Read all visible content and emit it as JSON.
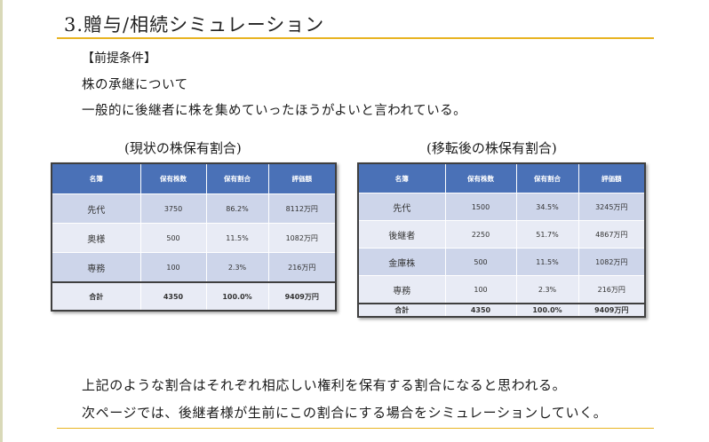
{
  "slide": {
    "title": "3.贈与/相続シミュレーション",
    "premise_label": "【前提条件】",
    "intro_lines": [
      "株の承継について",
      "一般的に後継者に株を集めていったほうがよいと言われている。"
    ]
  },
  "tables": [
    {
      "caption": "(現状の株保有割合)",
      "headers": [
        "名簿",
        "保有株数",
        "保有割合",
        "評価額"
      ],
      "rows": [
        [
          "先代",
          "3750",
          "86.2%",
          "8112万円"
        ],
        [
          "奥様",
          "500",
          "11.5%",
          "1082万円"
        ],
        [
          "専務",
          "100",
          "2.3%",
          "216万円"
        ]
      ],
      "total": [
        "合計",
        "4350",
        "100.0%",
        "9409万円"
      ]
    },
    {
      "caption": "(移転後の株保有割合)",
      "headers": [
        "名簿",
        "保有株数",
        "保有割合",
        "評価額"
      ],
      "rows": [
        [
          "先代",
          "1500",
          "34.5%",
          "3245万円"
        ],
        [
          "後継者",
          "2250",
          "51.7%",
          "4867万円"
        ],
        [
          "金庫株",
          "500",
          "11.5%",
          "1082万円"
        ],
        [
          "専務",
          "100",
          "2.3%",
          "216万円"
        ]
      ],
      "total": [
        "合計",
        "4350",
        "100.0%",
        "9409万円"
      ]
    }
  ],
  "summary_lines": [
    "上記のような割合はそれぞれ相応しい権利を保有する割合になると思われる。",
    "次ページでは、後継者様が生前にこの割合にする場合をシミュレーションしていく。"
  ],
  "colors": {
    "header_blue": "#4a71b7",
    "row_blue": "#cdd5ea",
    "row_light": "#e8ebf5",
    "accent_rule": "#e8b422"
  }
}
